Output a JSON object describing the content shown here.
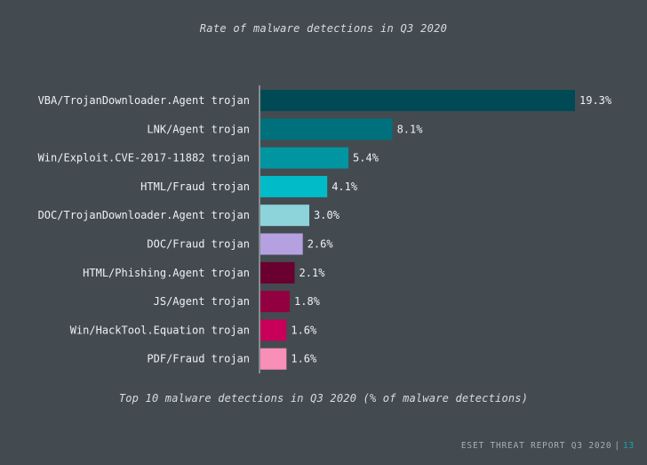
{
  "chart_data": {
    "type": "bar",
    "orientation": "horizontal",
    "title": "Rate of malware detections in Q3 2020",
    "caption": "Top 10 malware detections in Q3 2020 (% of malware detections)",
    "categories": [
      "VBA/TrojanDownloader.Agent trojan",
      "LNK/Agent trojan",
      "Win/Exploit.CVE-2017-11882 trojan",
      "HTML/Fraud trojan",
      "DOC/TrojanDownloader.Agent trojan",
      "DOC/Fraud trojan",
      "HTML/Phishing.Agent trojan",
      "JS/Agent trojan",
      "Win/HackTool.Equation trojan",
      "PDF/Fraud trojan"
    ],
    "values": [
      19.3,
      8.1,
      5.4,
      4.1,
      3.0,
      2.6,
      2.1,
      1.8,
      1.6,
      1.6
    ],
    "value_labels": [
      "19.3%",
      "8.1%",
      "5.4%",
      "4.1%",
      "3.0%",
      "2.6%",
      "2.1%",
      "1.8%",
      "1.6%",
      "1.6%"
    ],
    "colors": [
      "#004a55",
      "#00717c",
      "#0095a0",
      "#00bcc8",
      "#8dd3da",
      "#b5a0e0",
      "#6a0030",
      "#930041",
      "#c8005a",
      "#f98fb7"
    ],
    "xlim": [
      0,
      19.3
    ],
    "grid": false,
    "legend": "none"
  },
  "footer": {
    "report": "ESET THREAT REPORT Q3 2020",
    "separator": "|",
    "page": "13"
  }
}
